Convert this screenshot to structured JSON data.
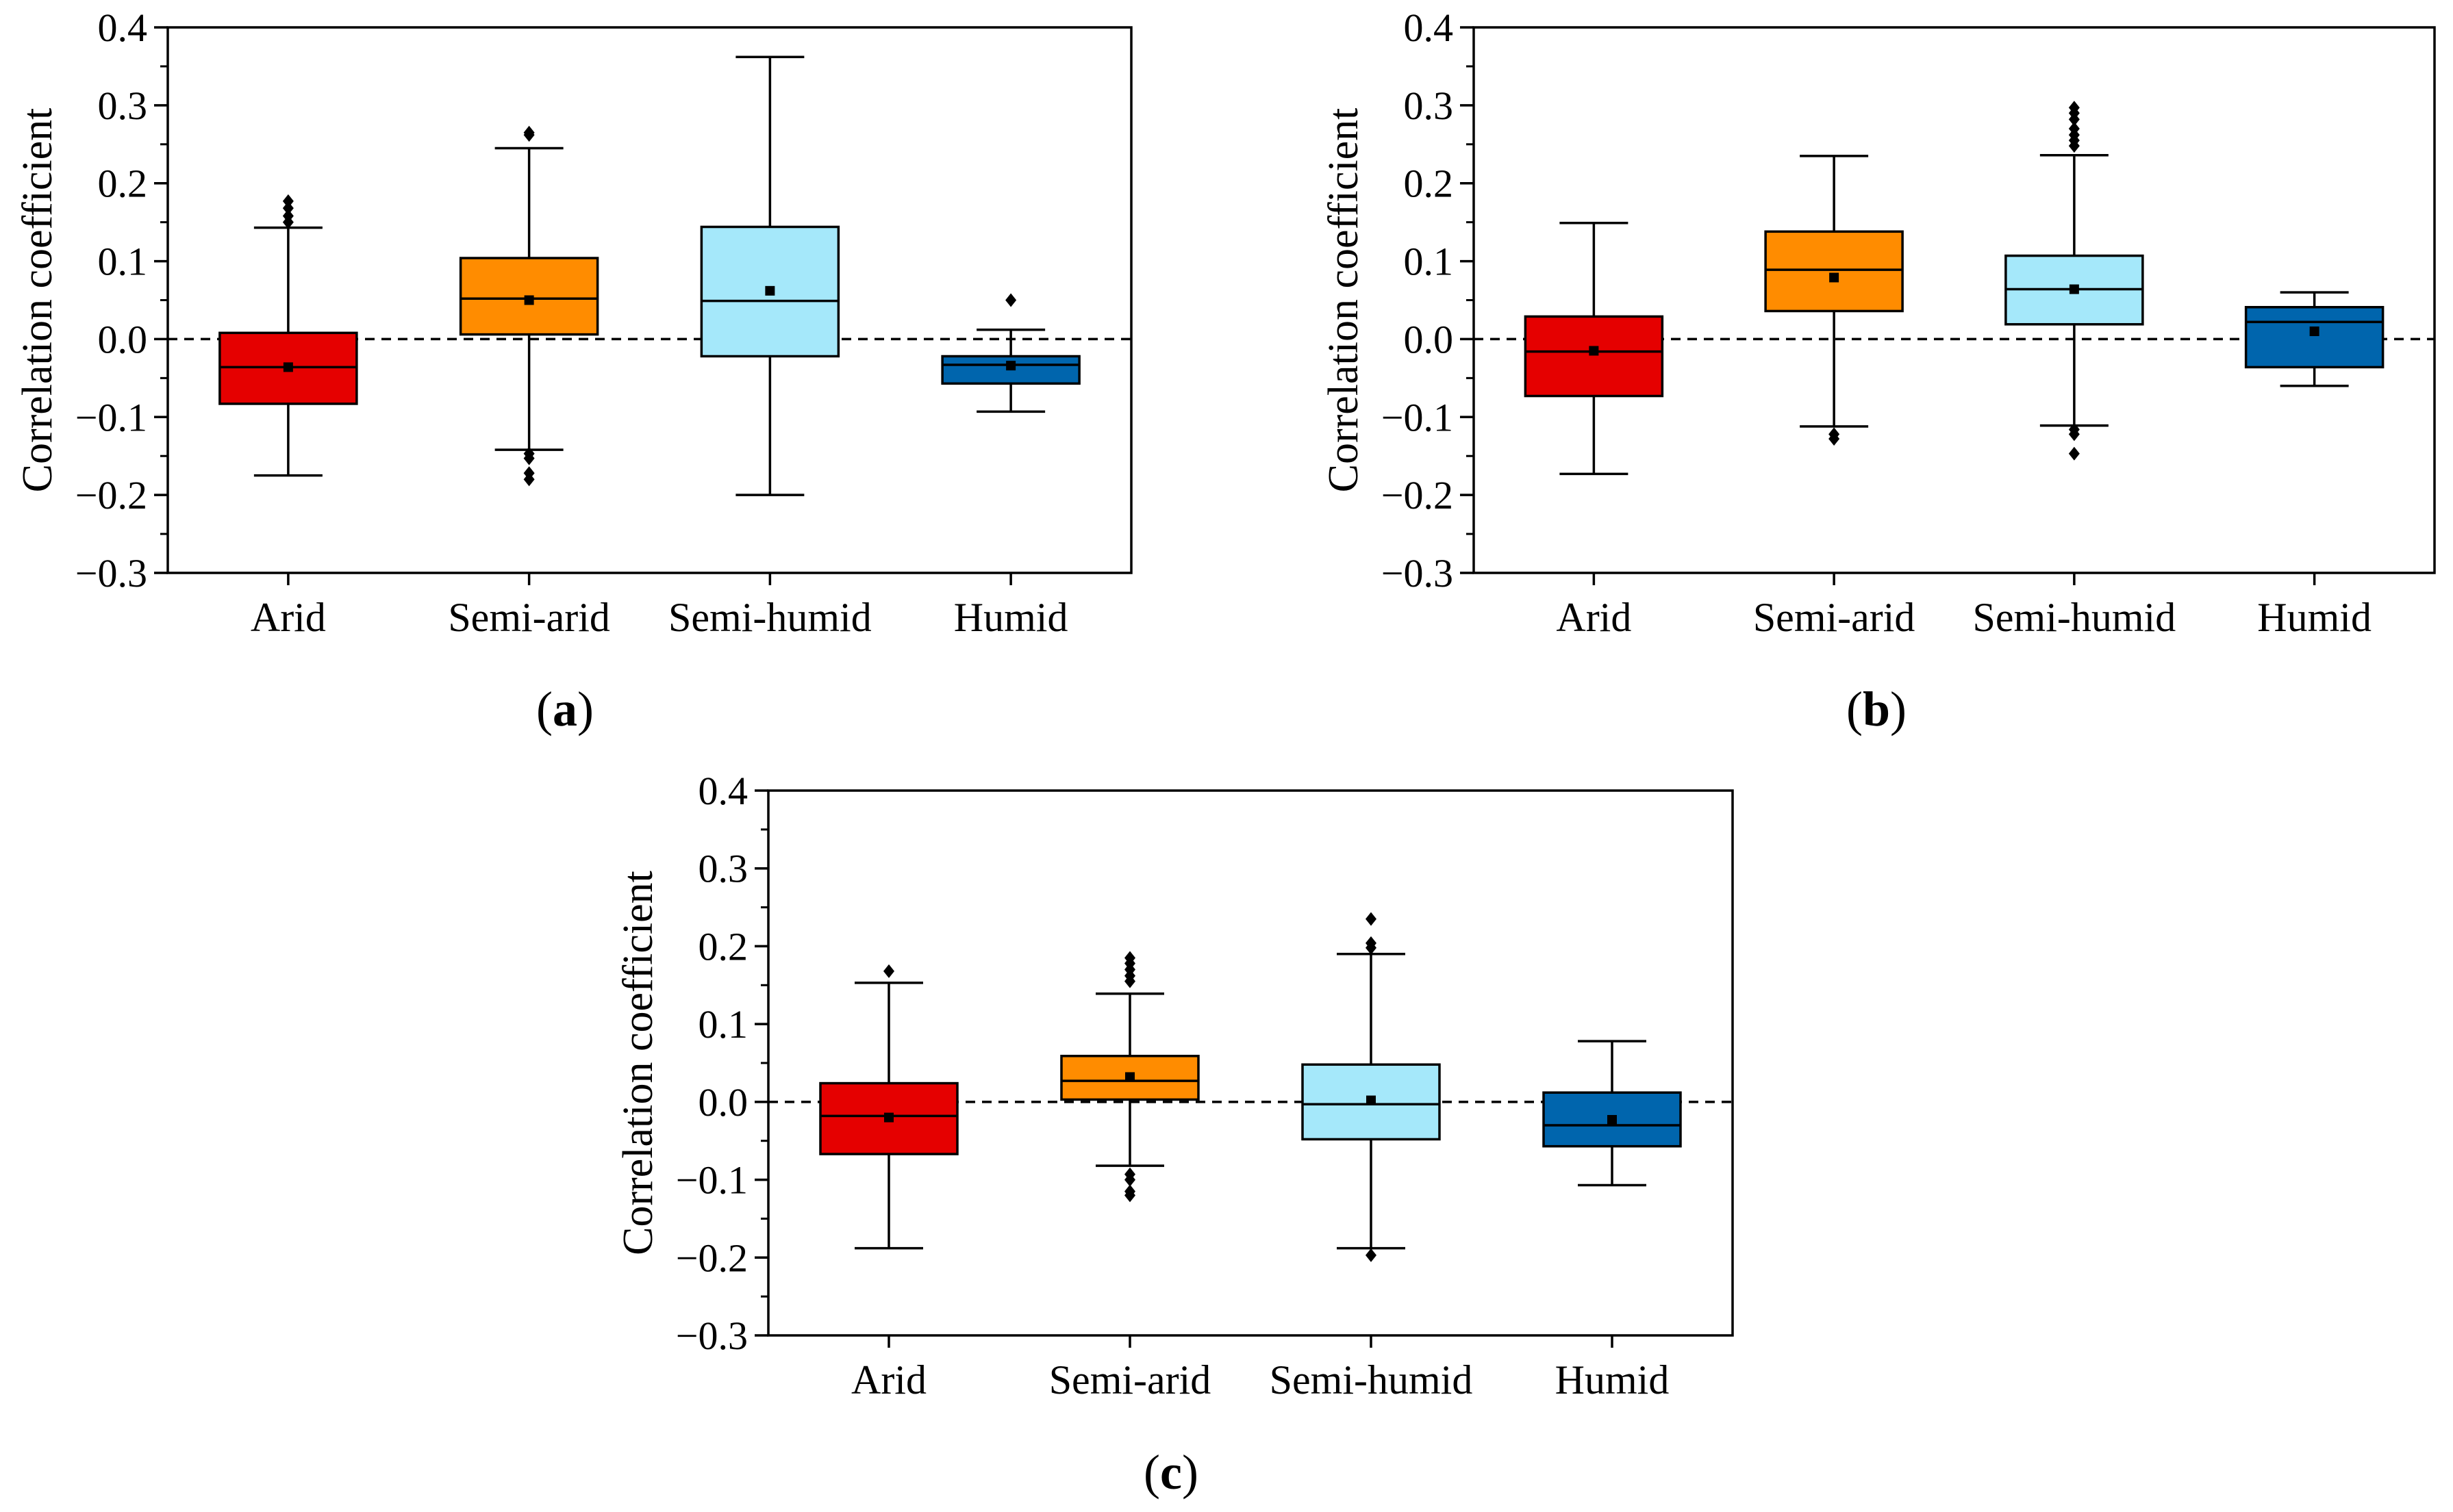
{
  "figure": {
    "panel_labels": [
      {
        "open": "(",
        "letter": "a",
        "close": ")"
      },
      {
        "open": "(",
        "letter": "b",
        "close": ")"
      },
      {
        "open": "(",
        "letter": "c",
        "close": ")"
      }
    ]
  },
  "chart_data": [
    {
      "panel": "a",
      "type": "box",
      "title": "",
      "xlabel": "",
      "ylabel": "Correlation coefficient",
      "ylim": [
        -0.3,
        0.4
      ],
      "yticks": [
        -0.3,
        -0.2,
        -0.1,
        0.0,
        0.1,
        0.2,
        0.3,
        0.4
      ],
      "ytick_labels": [
        "−0.3",
        "−0.2",
        "−0.1",
        "0.0",
        "0.1",
        "0.2",
        "0.3",
        "0.4"
      ],
      "reference_line": 0.0,
      "categories": [
        "Arid",
        "Semi-arid",
        "Semi-humid",
        "Humid"
      ],
      "colors": [
        "#e50000",
        "#ff8c00",
        "#a5e8fa",
        "#0065ad"
      ],
      "boxes": [
        {
          "whisker_low": -0.175,
          "q1": -0.083,
          "median": -0.036,
          "q3": 0.008,
          "whisker_high": 0.143,
          "mean": -0.036,
          "outliers": [
            0.15,
            0.158,
            0.168,
            0.177
          ]
        },
        {
          "whisker_low": -0.142,
          "q1": 0.006,
          "median": 0.052,
          "q3": 0.104,
          "whisker_high": 0.245,
          "mean": 0.05,
          "outliers": [
            0.262,
            0.265,
            -0.147,
            -0.153,
            -0.172,
            -0.18
          ]
        },
        {
          "whisker_low": -0.2,
          "q1": -0.022,
          "median": 0.049,
          "q3": 0.144,
          "whisker_high": 0.362,
          "mean": 0.062,
          "outliers": []
        },
        {
          "whisker_low": -0.093,
          "q1": -0.057,
          "median": -0.033,
          "q3": -0.022,
          "whisker_high": 0.012,
          "mean": -0.034,
          "outliers": [
            0.05
          ]
        }
      ]
    },
    {
      "panel": "b",
      "type": "box",
      "title": "",
      "xlabel": "",
      "ylabel": "Correlation coefficient",
      "ylim": [
        -0.3,
        0.4
      ],
      "yticks": [
        -0.3,
        -0.2,
        -0.1,
        0.0,
        0.1,
        0.2,
        0.3,
        0.4
      ],
      "ytick_labels": [
        "−0.3",
        "−0.2",
        "−0.1",
        "0.0",
        "0.1",
        "0.2",
        "0.3",
        "0.4"
      ],
      "reference_line": 0.0,
      "categories": [
        "Arid",
        "Semi-arid",
        "Semi-humid",
        "Humid"
      ],
      "colors": [
        "#e50000",
        "#ff8c00",
        "#a5e8fa",
        "#0065ad"
      ],
      "boxes": [
        {
          "whisker_low": -0.173,
          "q1": -0.073,
          "median": -0.016,
          "q3": 0.029,
          "whisker_high": 0.149,
          "mean": -0.015,
          "outliers": []
        },
        {
          "whisker_low": -0.112,
          "q1": 0.036,
          "median": 0.089,
          "q3": 0.138,
          "whisker_high": 0.235,
          "mean": 0.079,
          "outliers": [
            -0.122,
            -0.128
          ]
        },
        {
          "whisker_low": -0.111,
          "q1": 0.019,
          "median": 0.064,
          "q3": 0.107,
          "whisker_high": 0.236,
          "mean": 0.064,
          "outliers": [
            0.248,
            0.255,
            0.262,
            0.27,
            0.282,
            0.29,
            0.297,
            -0.116,
            -0.122,
            -0.147
          ]
        },
        {
          "whisker_low": -0.06,
          "q1": -0.036,
          "median": 0.022,
          "q3": 0.041,
          "whisker_high": 0.06,
          "mean": 0.01,
          "outliers": []
        }
      ]
    },
    {
      "panel": "c",
      "type": "box",
      "title": "",
      "xlabel": "",
      "ylabel": "Correlation coefficient",
      "ylim": [
        -0.3,
        0.4
      ],
      "yticks": [
        -0.3,
        -0.2,
        -0.1,
        0.0,
        0.1,
        0.2,
        0.3,
        0.4
      ],
      "ytick_labels": [
        "−0.3",
        "−0.2",
        "−0.1",
        "0.0",
        "0.1",
        "0.2",
        "0.3",
        "0.4"
      ],
      "reference_line": 0.0,
      "categories": [
        "Arid",
        "Semi-arid",
        "Semi-humid",
        "Humid"
      ],
      "colors": [
        "#e50000",
        "#ff8c00",
        "#a5e8fa",
        "#0065ad"
      ],
      "boxes": [
        {
          "whisker_low": -0.188,
          "q1": -0.067,
          "median": -0.018,
          "q3": 0.024,
          "whisker_high": 0.153,
          "mean": -0.02,
          "outliers": [
            0.168
          ]
        },
        {
          "whisker_low": -0.082,
          "q1": 0.003,
          "median": 0.027,
          "q3": 0.059,
          "whisker_high": 0.139,
          "mean": 0.032,
          "outliers": [
            0.155,
            0.162,
            0.17,
            0.178,
            0.185,
            -0.093,
            -0.1,
            -0.115,
            -0.12
          ]
        },
        {
          "whisker_low": -0.188,
          "q1": -0.048,
          "median": -0.003,
          "q3": 0.048,
          "whisker_high": 0.19,
          "mean": 0.002,
          "outliers": [
            0.198,
            0.204,
            0.235,
            -0.197
          ]
        },
        {
          "whisker_low": -0.107,
          "q1": -0.057,
          "median": -0.03,
          "q3": 0.012,
          "whisker_high": 0.078,
          "mean": -0.023,
          "outliers": []
        }
      ]
    }
  ]
}
